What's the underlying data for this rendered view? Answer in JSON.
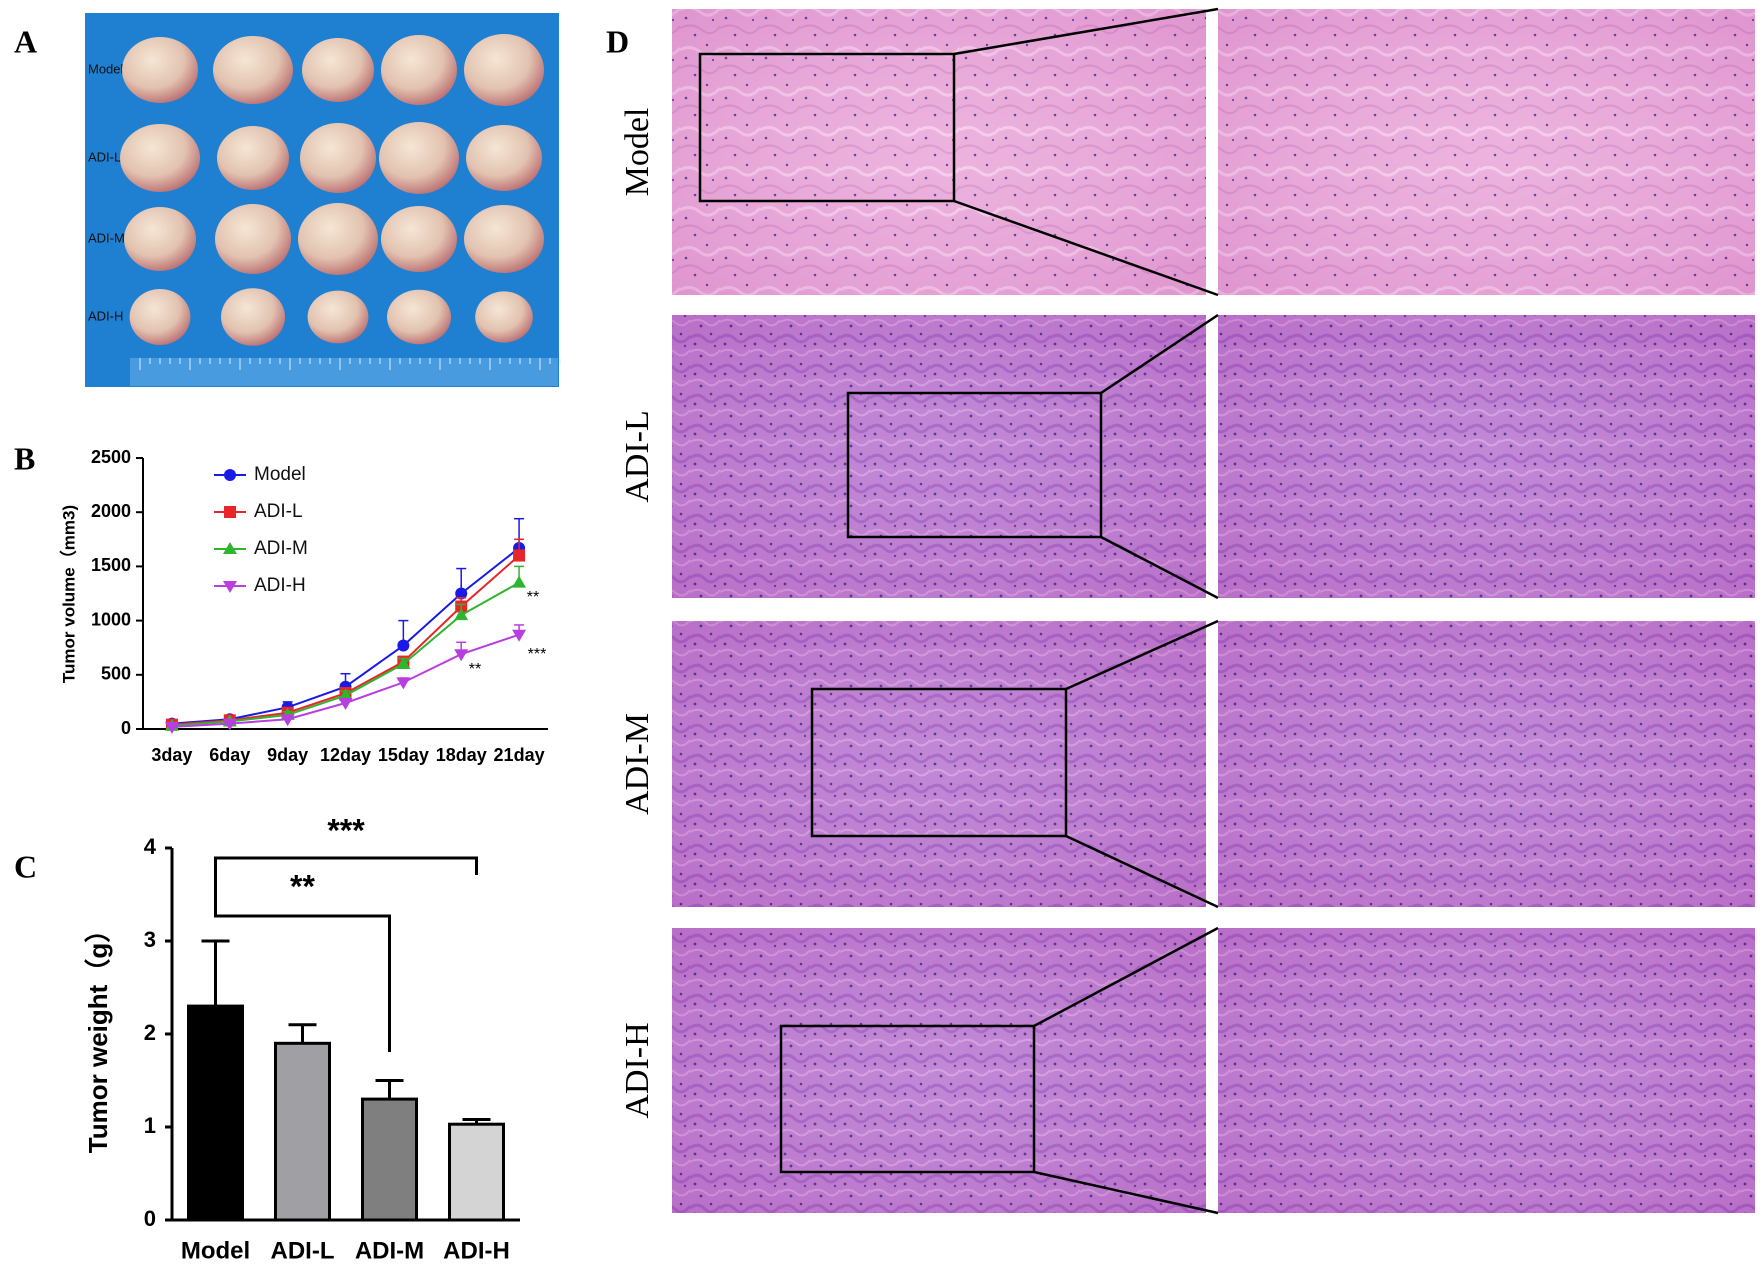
{
  "photo": {
    "panel": "A",
    "rows": [
      "Model",
      "ADI-L",
      "ADI-M",
      "ADI-H"
    ]
  },
  "histology": {
    "panel": "D",
    "rows": [
      "Model",
      "ADI-L",
      "ADI-M",
      "ADI-H"
    ]
  },
  "chart_data": [
    {
      "type": "line",
      "panel": "B",
      "y_label": "Tumor volume（mm3)",
      "categories": [
        "3day",
        "6day",
        "9day",
        "12day",
        "15day",
        "18day",
        "21day"
      ],
      "ylim": [
        0,
        2500
      ],
      "yticks": [
        0,
        500,
        1000,
        1500,
        2000,
        2500
      ],
      "legend": "top-left",
      "series": [
        {
          "name": "Model",
          "color": "#1a1ae6",
          "marker": "circle",
          "values": [
            50,
            90,
            200,
            390,
            770,
            1250,
            1670
          ],
          "errors": [
            20,
            25,
            50,
            120,
            230,
            230,
            270
          ]
        },
        {
          "name": "ADI-L",
          "color": "#e8262a",
          "marker": "square",
          "values": [
            40,
            80,
            150,
            330,
            620,
            1130,
            1600
          ],
          "errors": [
            15,
            20,
            30,
            50,
            50,
            80,
            150
          ]
        },
        {
          "name": "ADI-M",
          "color": "#2fb52f",
          "marker": "triangle-up",
          "values": [
            30,
            70,
            130,
            310,
            600,
            1050,
            1350
          ],
          "errors": [
            15,
            20,
            30,
            40,
            50,
            100,
            150
          ]
        },
        {
          "name": "ADI-H",
          "color": "#b83ee0",
          "marker": "triangle-down",
          "values": [
            20,
            50,
            90,
            240,
            430,
            690,
            870
          ],
          "errors": [
            10,
            10,
            20,
            30,
            40,
            110,
            90
          ]
        }
      ],
      "annotations": [
        "**",
        "**",
        "***"
      ]
    },
    {
      "type": "bar",
      "panel": "C",
      "y_label": "Tumor weight（g）",
      "categories": [
        "Model",
        "ADI-L",
        "ADI-M",
        "ADI-H"
      ],
      "values": [
        2.3,
        1.9,
        1.3,
        1.03
      ],
      "errors": [
        0.7,
        0.2,
        0.2,
        0.05
      ],
      "colors": [
        "#000000",
        "#a0a0a4",
        "#7f7f7f",
        "#d4d4d4"
      ],
      "ylim": [
        0,
        4
      ],
      "yticks": [
        0,
        1,
        2,
        3,
        4
      ],
      "significance": [
        "**",
        "***"
      ]
    }
  ]
}
